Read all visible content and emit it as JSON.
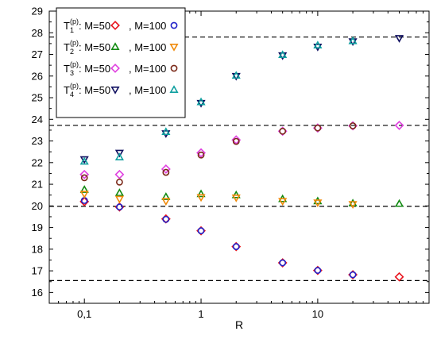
{
  "chart_data": {
    "type": "scatter",
    "xlabel": "R",
    "ylabel": "",
    "xscale": "log",
    "xlim": [
      0.05,
      90
    ],
    "ylim": [
      15.5,
      29
    ],
    "xticks": [
      0.1,
      1,
      10
    ],
    "xtick_labels": [
      "0,1",
      "1",
      "10"
    ],
    "yticks": [
      16,
      17,
      18,
      19,
      20,
      21,
      22,
      23,
      24,
      25,
      26,
      27,
      28,
      29
    ],
    "ytick_labels": [
      "16",
      "17",
      "18",
      "19",
      "20",
      "21",
      "22",
      "23",
      "24",
      "25",
      "26",
      "27",
      "28",
      "29"
    ],
    "reference_lines": [
      16.55,
      19.98,
      23.72,
      27.8
    ],
    "legend_position": "top-left",
    "legend": {
      "rows": [
        {
          "base": "T",
          "sub": "1",
          "sup": "(p)",
          "m50": ": M=50",
          "m100": ", M=100"
        },
        {
          "base": "T",
          "sub": "2",
          "sup": "(p)",
          "m50": ": M=50",
          "m100": ", M=100"
        },
        {
          "base": "T",
          "sub": "3",
          "sup": "(p)",
          "m50": ": M=50",
          "m100": ", M=100"
        },
        {
          "base": "T",
          "sub": "4",
          "sup": "(p)",
          "m50": ": M=50",
          "m100": ", M=100"
        }
      ]
    },
    "series": [
      {
        "row": 1,
        "marker": "diamond",
        "color": "#e8141e",
        "x": [
          0.1,
          0.2,
          0.5,
          1,
          2,
          5,
          10,
          20,
          50
        ],
        "y": [
          20.2,
          19.95,
          19.4,
          18.85,
          18.12,
          17.37,
          17.02,
          16.82,
          16.72
        ]
      },
      {
        "row": 1,
        "marker": "circle",
        "color": "#2020c8",
        "x": [
          0.1,
          0.2,
          0.5,
          1,
          2,
          5,
          10,
          20
        ],
        "y": [
          20.25,
          19.95,
          19.38,
          18.85,
          18.12,
          17.37,
          17.02,
          16.82
        ]
      },
      {
        "row": 2,
        "marker": "triangle-up",
        "color": "#128a12",
        "x": [
          0.1,
          0.2,
          0.5,
          1,
          2,
          5,
          10,
          20,
          50
        ],
        "y": [
          20.75,
          20.6,
          20.42,
          20.55,
          20.5,
          20.32,
          20.22,
          20.12,
          20.1
        ]
      },
      {
        "row": 2,
        "marker": "triangle-down",
        "color": "#f08a0a",
        "x": [
          0.1,
          0.2,
          0.5,
          1,
          2,
          5,
          10,
          20
        ],
        "y": [
          20.55,
          20.32,
          20.22,
          20.4,
          20.38,
          20.22,
          20.15,
          20.08
        ]
      },
      {
        "row": 3,
        "marker": "diamond",
        "color": "#e040e0",
        "x": [
          0.1,
          0.2,
          0.5,
          1,
          2,
          5,
          10,
          20,
          50
        ],
        "y": [
          21.45,
          21.45,
          21.7,
          22.45,
          23.05,
          23.45,
          23.6,
          23.7,
          23.72
        ]
      },
      {
        "row": 3,
        "marker": "circle",
        "color": "#7a2818",
        "x": [
          0.1,
          0.2,
          0.5,
          1,
          2,
          5,
          10,
          20
        ],
        "y": [
          21.3,
          21.1,
          21.55,
          22.35,
          22.98,
          23.45,
          23.6,
          23.7
        ]
      },
      {
        "row": 4,
        "marker": "triangle-down",
        "color": "#101060",
        "x": [
          0.1,
          0.2,
          0.5,
          1,
          2,
          5,
          10,
          20,
          50
        ],
        "y": [
          22.15,
          22.45,
          23.35,
          24.75,
          26.0,
          26.95,
          27.35,
          27.6,
          27.75
        ]
      },
      {
        "row": 4,
        "marker": "triangle-up",
        "color": "#10a0a0",
        "x": [
          0.1,
          0.2,
          0.5,
          1,
          2,
          5,
          10,
          20
        ],
        "y": [
          22.05,
          22.25,
          23.42,
          24.8,
          26.02,
          26.98,
          27.42,
          27.62
        ]
      }
    ]
  }
}
